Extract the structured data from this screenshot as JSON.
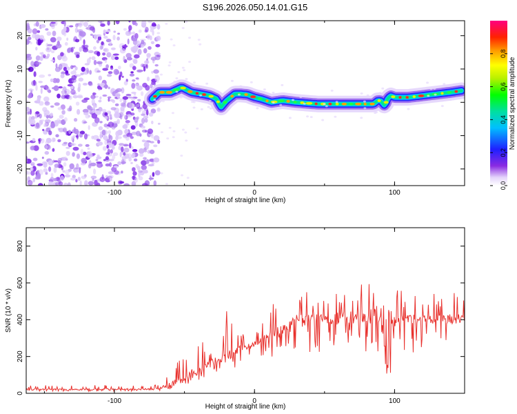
{
  "title": "S196.2026.050.14.01.G15",
  "colors": {
    "snr_line": "#e8302c",
    "axis": "#000000",
    "scatter": "#7a1fe6"
  },
  "chart_data": [
    {
      "type": "heatmap",
      "name": "spectrogram",
      "xlabel": "Height of straight line (km)",
      "ylabel": "Frequency (Hz)",
      "xlim": [
        -163,
        150
      ],
      "ylim": [
        -25,
        24.5
      ],
      "xticks": [
        -100,
        0,
        100
      ],
      "yticks": [
        -20,
        -10,
        0,
        10,
        20
      ],
      "noise_region_x": [
        -163,
        -68
      ],
      "ridge": {
        "x": [
          -73,
          -68,
          -60,
          -52,
          -45,
          -38,
          -32,
          -27,
          -24,
          -20,
          -14,
          -10,
          -5,
          0,
          5,
          12,
          20,
          30,
          45,
          60,
          75,
          85,
          88,
          90,
          93,
          95,
          97,
          100,
          110,
          120,
          130,
          140,
          148
        ],
        "y": [
          1,
          3,
          3,
          4.5,
          3,
          2.5,
          2,
          1,
          -1.5,
          0.5,
          2.5,
          2.5,
          2.3,
          1.5,
          1,
          0,
          0.5,
          0,
          -0.5,
          -0.5,
          -0.5,
          -0.5,
          0.5,
          0.5,
          -1,
          1,
          2,
          1.5,
          1.5,
          2,
          2.5,
          3,
          3.5
        ]
      },
      "colorbar": {
        "label": "Normalized spectral amplitude",
        "range": [
          0.0,
          1.0
        ],
        "ticks": [
          0.0,
          0.2,
          0.4,
          0.6,
          0.8
        ],
        "tick_labels": [
          "0.0",
          "0.2",
          "0.4",
          "0.6",
          "0.8"
        ]
      }
    },
    {
      "type": "line",
      "name": "snr",
      "xlabel": "Height of straight line (km)",
      "ylabel": "SNR (10 * v/v)",
      "xlim": [
        -163,
        150
      ],
      "ylim": [
        0,
        900
      ],
      "xticks": [
        -100,
        0,
        100
      ],
      "yticks": [
        0,
        200,
        400,
        600,
        800
      ],
      "envelope": {
        "x": [
          -163,
          -100,
          -70,
          -60,
          -50,
          -40,
          -30,
          -20,
          -10,
          0,
          10,
          20,
          30,
          40,
          60,
          80,
          95,
          100,
          110,
          130,
          150
        ],
        "baseline": [
          20,
          20,
          22,
          40,
          80,
          120,
          160,
          200,
          240,
          260,
          300,
          340,
          380,
          400,
          400,
          410,
          400,
          390,
          400,
          400,
          400
        ],
        "spike_max": [
          45,
          45,
          50,
          130,
          220,
          270,
          300,
          460,
          330,
          380,
          460,
          560,
          620,
          550,
          600,
          590,
          900,
          580,
          540,
          560,
          560
        ]
      }
    }
  ]
}
